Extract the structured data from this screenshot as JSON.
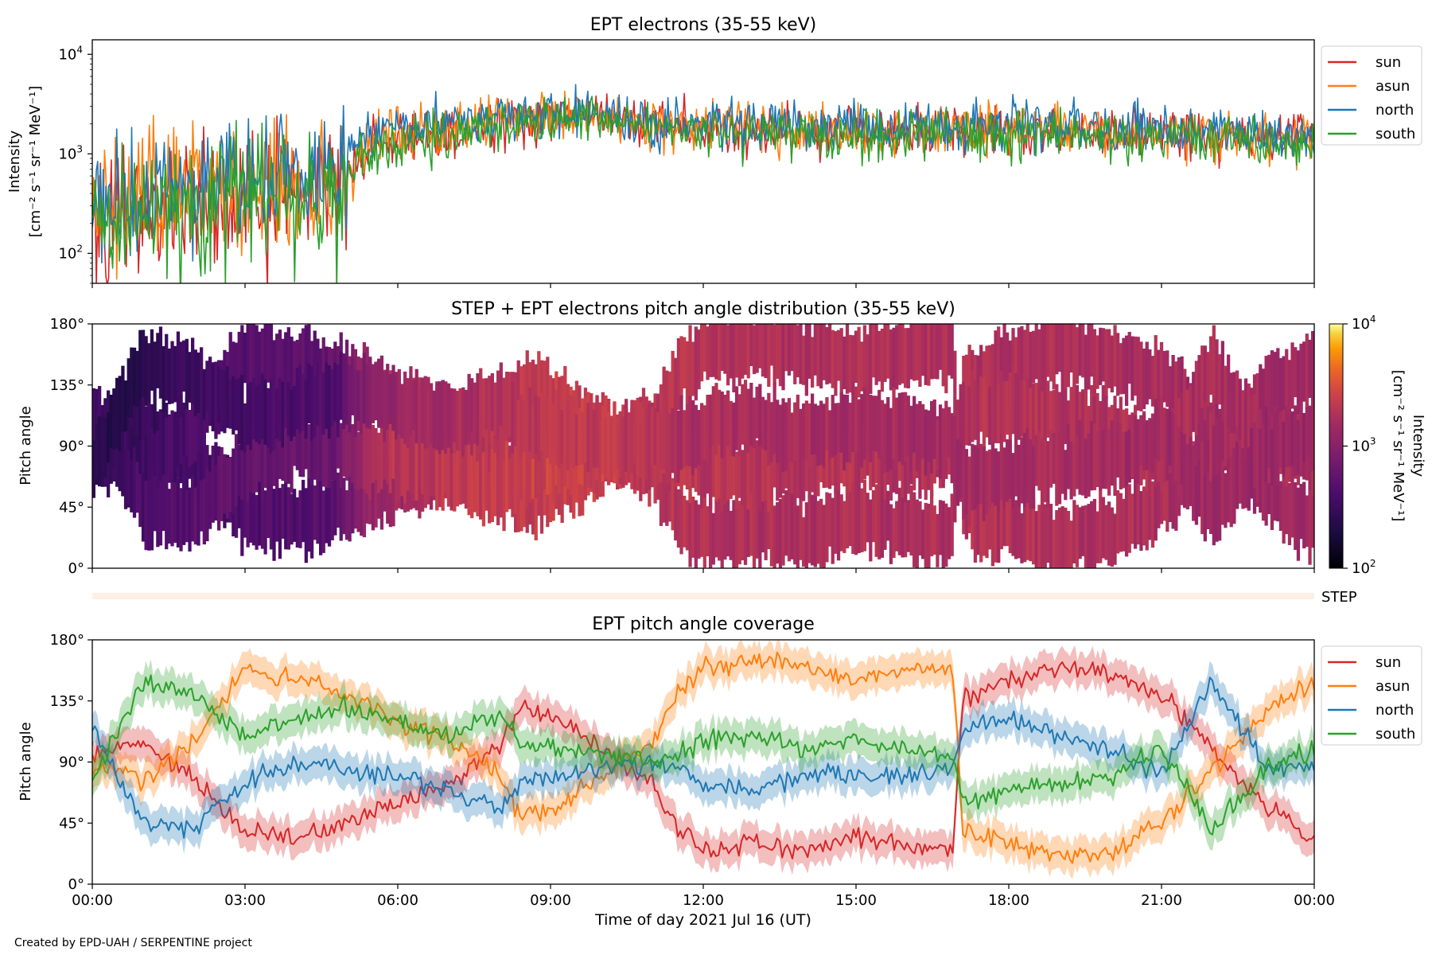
{
  "figure": {
    "credit": "Created by EPD-UAH / SERPENTINE project",
    "xlabel": "Time of day 2021 Jul 16 (UT)",
    "x_tick_labels": [
      "00:00",
      "03:00",
      "06:00",
      "09:00",
      "12:00",
      "15:00",
      "18:00",
      "21:00",
      "00:00"
    ],
    "pitch_tick_labels": [
      "0°",
      "45°",
      "90°",
      "135°",
      "180°"
    ],
    "step_strip_label": "STEP"
  },
  "chart_data": [
    {
      "type": "line",
      "title": "EPT electrons (35-55 keV)",
      "ylabel_line1": "Intensity",
      "ylabel_line2": "[cm⁻² s⁻¹ sr⁻¹ MeV⁻¹]",
      "yscale": "log",
      "ylim": [
        50,
        14000
      ],
      "y_tick_labels": [
        {
          "base": "10",
          "exp": "2",
          "value": 100
        },
        {
          "base": "10",
          "exp": "3",
          "value": 1000
        },
        {
          "base": "10",
          "exp": "4",
          "value": 10000
        }
      ],
      "xlim_hours": [
        0,
        24
      ],
      "legend_position": "outside-right-top",
      "x_hours": [
        0,
        1,
        2,
        3,
        4,
        4.8,
        5.2,
        5.6,
        6,
        7,
        8,
        9,
        10,
        11,
        12,
        13,
        14,
        15,
        16,
        17,
        18,
        19,
        20,
        21,
        22,
        23,
        24
      ],
      "series": [
        {
          "name": "sun",
          "color": "#d62728",
          "values": [
            250,
            300,
            380,
            420,
            450,
            500,
            900,
            1300,
            1400,
            1650,
            2000,
            2400,
            2500,
            2100,
            1800,
            1750,
            1700,
            1750,
            1700,
            1700,
            1750,
            1750,
            1650,
            1600,
            1500,
            1450,
            1400
          ]
        },
        {
          "name": "asun",
          "color": "#ff7f0e",
          "values": [
            280,
            340,
            420,
            470,
            520,
            560,
            1000,
            1500,
            1600,
            1800,
            2100,
            2400,
            2400,
            2000,
            1900,
            1800,
            1750,
            1800,
            1750,
            1800,
            1800,
            1800,
            1700,
            1650,
            1550,
            1500,
            1450
          ]
        },
        {
          "name": "north",
          "color": "#1f77b4",
          "values": [
            330,
            400,
            500,
            560,
            600,
            650,
            1300,
            1900,
            2000,
            2100,
            2300,
            2600,
            2500,
            2100,
            2000,
            1950,
            1900,
            1900,
            1850,
            1850,
            1900,
            1900,
            1800,
            1750,
            1650,
            1600,
            1550
          ]
        },
        {
          "name": "south",
          "color": "#2ca02c",
          "values": [
            220,
            270,
            330,
            370,
            400,
            430,
            800,
            1200,
            1300,
            1550,
            1900,
            2200,
            2200,
            1800,
            1650,
            1600,
            1550,
            1600,
            1550,
            1550,
            1600,
            1600,
            1500,
            1450,
            1400,
            1350,
            1300
          ]
        }
      ]
    },
    {
      "type": "heatmap",
      "title": "STEP + EPT electrons pitch angle distribution (35-55 keV)",
      "ylabel": "Pitch angle",
      "ylim": [
        0,
        180
      ],
      "xlim_hours": [
        0,
        24
      ],
      "colormap": "inferno",
      "colorbar_label_line1": "Intensity",
      "colorbar_label_line2": "[cm⁻² s⁻¹ sr⁻¹ MeV⁻¹]",
      "colorbar_scale": "log",
      "colorbar_range": [
        100,
        10000
      ],
      "colorbar_tick_labels": [
        {
          "base": "10",
          "exp": "2",
          "value": 100
        },
        {
          "base": "10",
          "exp": "3",
          "value": 1000
        },
        {
          "base": "10",
          "exp": "4",
          "value": 10000
        }
      ]
    },
    {
      "type": "line",
      "title": "EPT pitch angle coverage",
      "ylabel": "Pitch angle",
      "ylim": [
        0,
        180
      ],
      "xlim_hours": [
        0,
        24
      ],
      "legend_position": "outside-right-top",
      "x_hours": [
        0,
        1,
        2,
        3,
        4,
        5,
        6,
        7,
        8,
        8.4,
        9,
        10,
        11,
        11.5,
        12,
        13,
        14,
        15,
        16,
        16.9,
        17.1,
        18,
        19,
        20,
        21,
        22,
        23,
        24
      ],
      "band_halfwidth_deg": 12,
      "series": [
        {
          "name": "sun",
          "color": "#d62728",
          "values": [
            95,
            105,
            80,
            40,
            35,
            45,
            60,
            75,
            100,
            130,
            125,
            100,
            75,
            40,
            25,
            30,
            25,
            35,
            30,
            25,
            135,
            150,
            160,
            155,
            140,
            100,
            60,
            30
          ]
        },
        {
          "name": "asun",
          "color": "#ff7f0e",
          "values": [
            85,
            75,
            105,
            160,
            150,
            140,
            120,
            105,
            80,
            50,
            55,
            80,
            105,
            140,
            160,
            165,
            160,
            150,
            160,
            160,
            40,
            30,
            20,
            25,
            45,
            85,
            125,
            150
          ]
        },
        {
          "name": "north",
          "color": "#1f77b4",
          "values": [
            115,
            45,
            40,
            75,
            90,
            85,
            80,
            70,
            55,
            75,
            80,
            85,
            90,
            85,
            75,
            70,
            80,
            80,
            80,
            85,
            115,
            120,
            110,
            100,
            80,
            150,
            90,
            85
          ]
        },
        {
          "name": "south",
          "color": "#2ca02c",
          "values": [
            75,
            150,
            140,
            110,
            120,
            130,
            120,
            110,
            125,
            105,
            100,
            95,
            90,
            95,
            105,
            110,
            100,
            105,
            100,
            95,
            60,
            70,
            75,
            80,
            100,
            40,
            85,
            100
          ]
        }
      ]
    },
    {
      "type": "heatmap",
      "name": "STEP",
      "description_text": "",
      "xlim_hours": [
        0,
        24
      ]
    }
  ]
}
